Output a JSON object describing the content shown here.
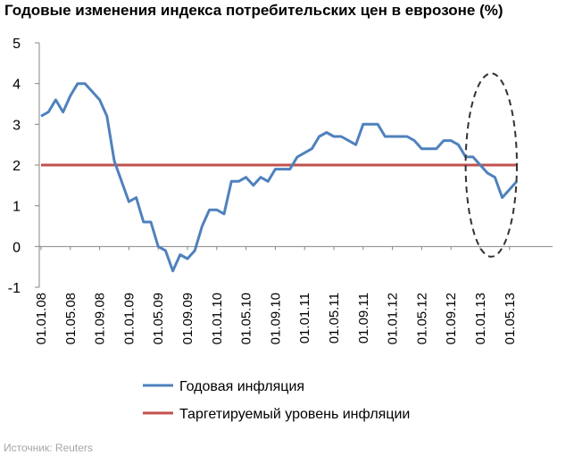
{
  "chart_data": {
    "type": "line",
    "title": "Годовые изменения индекса потребительских цен в еврозоне (%)",
    "ylim": [
      -1,
      5
    ],
    "yticks": [
      -1,
      0,
      1,
      2,
      3,
      4,
      5
    ],
    "x_tick_labels": [
      "01.01.08",
      "01.05.08",
      "01.09.08",
      "01.01.09",
      "01.05.09",
      "01.09.09",
      "01.01.10",
      "01.05.10",
      "01.09.10",
      "01.01.11",
      "01.05.11",
      "01.09.11",
      "01.01.12",
      "01.05.12",
      "01.09.12",
      "01.01.13",
      "01.05.13"
    ],
    "grid": false,
    "legend_position": "bottom",
    "series": [
      {
        "name": "Годовая инфляция",
        "color": "#4f81bd",
        "values": [
          3.2,
          3.3,
          3.6,
          3.3,
          3.7,
          4.0,
          4.0,
          3.8,
          3.6,
          3.2,
          2.1,
          1.6,
          1.1,
          1.2,
          0.6,
          0.6,
          0.0,
          -0.1,
          -0.6,
          -0.2,
          -0.3,
          -0.1,
          0.5,
          0.9,
          0.9,
          0.8,
          1.6,
          1.6,
          1.7,
          1.5,
          1.7,
          1.6,
          1.9,
          1.9,
          1.9,
          2.2,
          2.3,
          2.4,
          2.7,
          2.8,
          2.7,
          2.7,
          2.6,
          2.5,
          3.0,
          3.0,
          3.0,
          2.7,
          2.7,
          2.7,
          2.7,
          2.6,
          2.4,
          2.4,
          2.4,
          2.6,
          2.6,
          2.5,
          2.2,
          2.2,
          2.0,
          1.8,
          1.7,
          1.2,
          1.4,
          1.6
        ]
      },
      {
        "name": "Таргетируемый уровень инфляции",
        "color": "#c0504d",
        "values": [
          2,
          2
        ]
      }
    ],
    "annotation": {
      "type": "dashed-ellipse",
      "x_center_month": 61.5,
      "y_center": 2.0,
      "x_halfwidth_months": 3.5,
      "y_halfheight": 2.25
    }
  },
  "source": "Источник: Reuters"
}
